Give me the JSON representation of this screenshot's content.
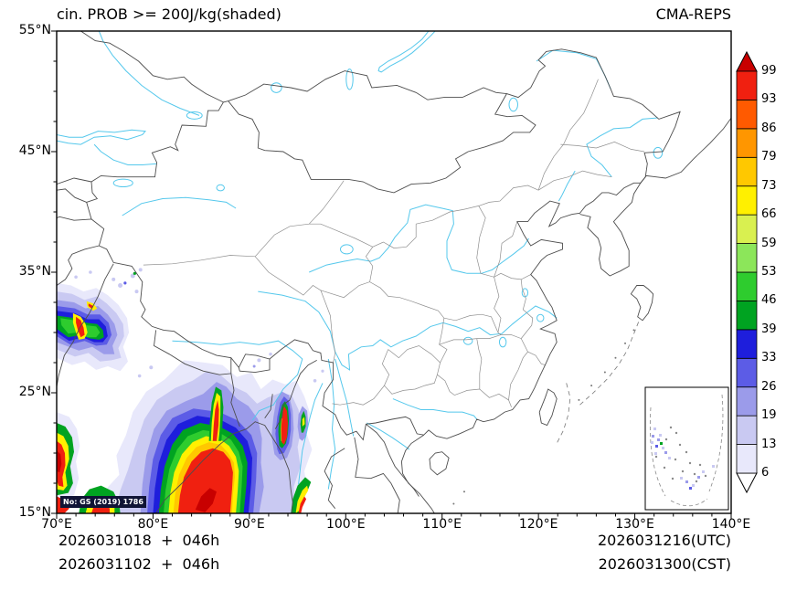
{
  "titles": {
    "left": "cin. PROB >= 200J/kg(shaded)",
    "right": "CMA-REPS"
  },
  "axes": {
    "x_ticks": [
      "70°E",
      "80°E",
      "90°E",
      "100°E",
      "110°E",
      "120°E",
      "130°E",
      "140°E"
    ],
    "y_ticks": [
      "55°N",
      "45°N",
      "35°N",
      "25°N",
      "15°N"
    ]
  },
  "footer": {
    "left_line1": "2026031018  +  046h",
    "left_line2": "2026031102  +  046h",
    "right_line1": "2026031216(UTC)",
    "right_line2": "2026031300(CST)"
  },
  "map_note": "No: GS (2019) 1786",
  "chart_data": {
    "type": "heatmap",
    "title": "cin. PROB >= 200J/kg(shaded)",
    "model": "CMA-REPS",
    "variable": "Probability of CIN >= 200 J/kg (%, shaded)",
    "init_times": [
      "2026031018 + 046h",
      "2026031102 + 046h"
    ],
    "valid_times": [
      "2026031216(UTC)",
      "2026031300(CST)"
    ],
    "lon_range": [
      70,
      140
    ],
    "lat_range": [
      15,
      55
    ],
    "x_tick_step_deg": 10,
    "y_tick_step_deg": 10,
    "basemap": "China province boundaries, national borders, coastlines, rivers (cyan), South China Sea inset box",
    "colorbar": {
      "levels": [
        6,
        13,
        19,
        26,
        33,
        39,
        46,
        53,
        59,
        66,
        73,
        79,
        86,
        93,
        99
      ],
      "colors": [
        "#E8E8FB",
        "#C9C9F2",
        "#9B9BEA",
        "#5C5CE6",
        "#1E1EDC",
        "#00A321",
        "#2ECC2E",
        "#8CE65A",
        "#D9F050",
        "#FFF000",
        "#FFC800",
        "#FF9600",
        "#FF5A00",
        "#F02010"
      ],
      "under_color": "#FFFFFF",
      "over_color": "#C80000",
      "orientation": "vertical-right"
    },
    "shaded_regions": [
      {
        "area": "Bay of Bengal / SE Himalaya, approx 74-96°E, 15-27.5°N",
        "max_prob": ">99",
        "note": "large red core with rainbow rings, lavender fringe"
      },
      {
        "area": "NW Himalaya / Karakoram, approx 70-77.5°E, 27-34°N",
        "max_prob": ">99",
        "note": "green/blue mass with small red-yellow cores"
      },
      {
        "area": "Vertical lobes approx 92.5-96.5°E, 15-25.5°N",
        "max_prob": "~93",
        "note": "narrow strips with red centers"
      },
      {
        "area": "Left map edge 70-72.5°E, 15-23°N",
        "max_prob": ">99",
        "note": "red streaks with green/yellow edging"
      },
      {
        "area": "South China Sea inset",
        "max_prob": "~26",
        "note": "scattered light blue speckles"
      }
    ]
  }
}
